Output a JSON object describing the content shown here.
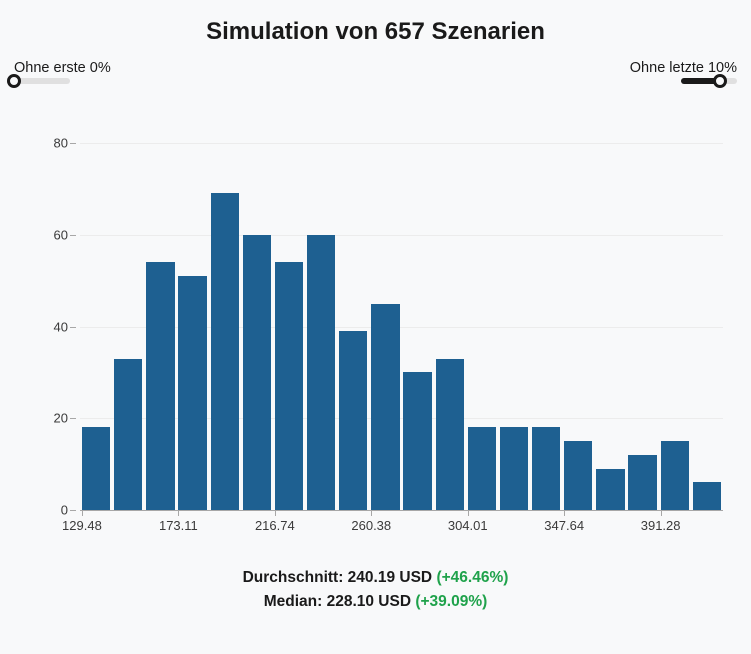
{
  "title": "Simulation von 657 Szenarien",
  "slider_left": {
    "label": "Ohne erste 0%",
    "value_pct": 0
  },
  "slider_right": {
    "label": "Ohne letzte 10%",
    "value_pct": 70
  },
  "chart": {
    "type": "histogram",
    "bar_color": "#1e6091",
    "background_color": "#f8f9fa",
    "grid_color": "#ececec",
    "axis_color": "#a7a7a7",
    "ylim": [
      0,
      80
    ],
    "yticks": [
      0,
      20,
      40,
      60,
      80
    ],
    "bar_width_ratio": 0.88,
    "values": [
      18,
      33,
      54,
      51,
      69,
      60,
      54,
      60,
      39,
      45,
      30,
      33,
      18,
      18,
      18,
      15,
      9,
      12,
      15,
      6
    ],
    "x_start": 129.48,
    "x_step": 14.5433,
    "x_tick_labels": [
      "129.48",
      "173.11",
      "216.74",
      "260.38",
      "304.01",
      "347.64",
      "391.28"
    ],
    "x_tick_bar_indices": [
      0,
      3,
      6,
      9,
      12,
      15,
      18
    ],
    "label_fontsize": 13
  },
  "stats": {
    "avg_label": "Durchschnitt:",
    "avg_value": "240.19 USD",
    "avg_pct": "(+46.46%)",
    "median_label": "Median:",
    "median_value": "228.10 USD",
    "median_pct": "(+39.09%)",
    "pct_color": "#1fa24b"
  }
}
